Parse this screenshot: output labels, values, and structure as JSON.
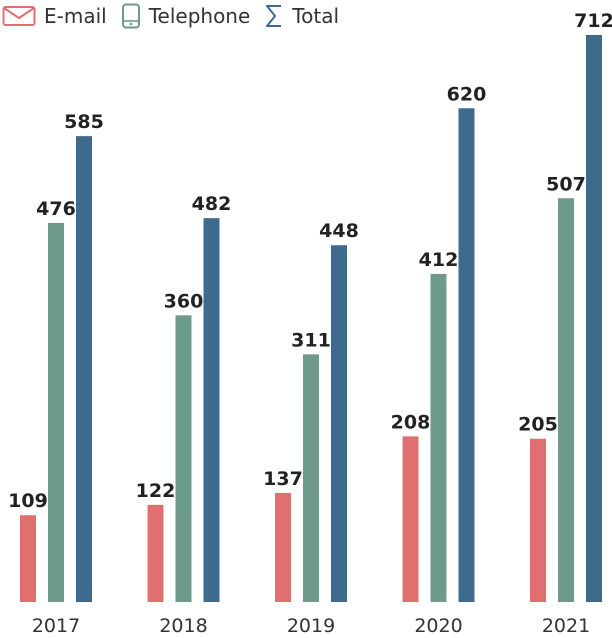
{
  "legend": {
    "items": [
      {
        "label": "E-mail",
        "icon": "envelope-icon",
        "color": "#e07070"
      },
      {
        "label": "Telephone",
        "icon": "phone-icon",
        "color": "#6d9a8a"
      },
      {
        "label": "Total",
        "icon": "sigma-icon",
        "color": "#3e6a8e"
      }
    ]
  },
  "chart_data": {
    "type": "bar",
    "categories": [
      "2017",
      "2018",
      "2019",
      "2020",
      "2021"
    ],
    "series": [
      {
        "name": "E-mail",
        "color": "#e07070",
        "values": [
          109,
          122,
          137,
          208,
          205
        ]
      },
      {
        "name": "Telephone",
        "color": "#6d9a8a",
        "values": [
          476,
          360,
          311,
          412,
          507
        ]
      },
      {
        "name": "Total",
        "color": "#3e6a8e",
        "values": [
          585,
          482,
          448,
          620,
          712
        ]
      }
    ],
    "ylim": [
      0,
      712
    ],
    "grid": false,
    "legend_position": "top-left",
    "data_labels": true
  }
}
